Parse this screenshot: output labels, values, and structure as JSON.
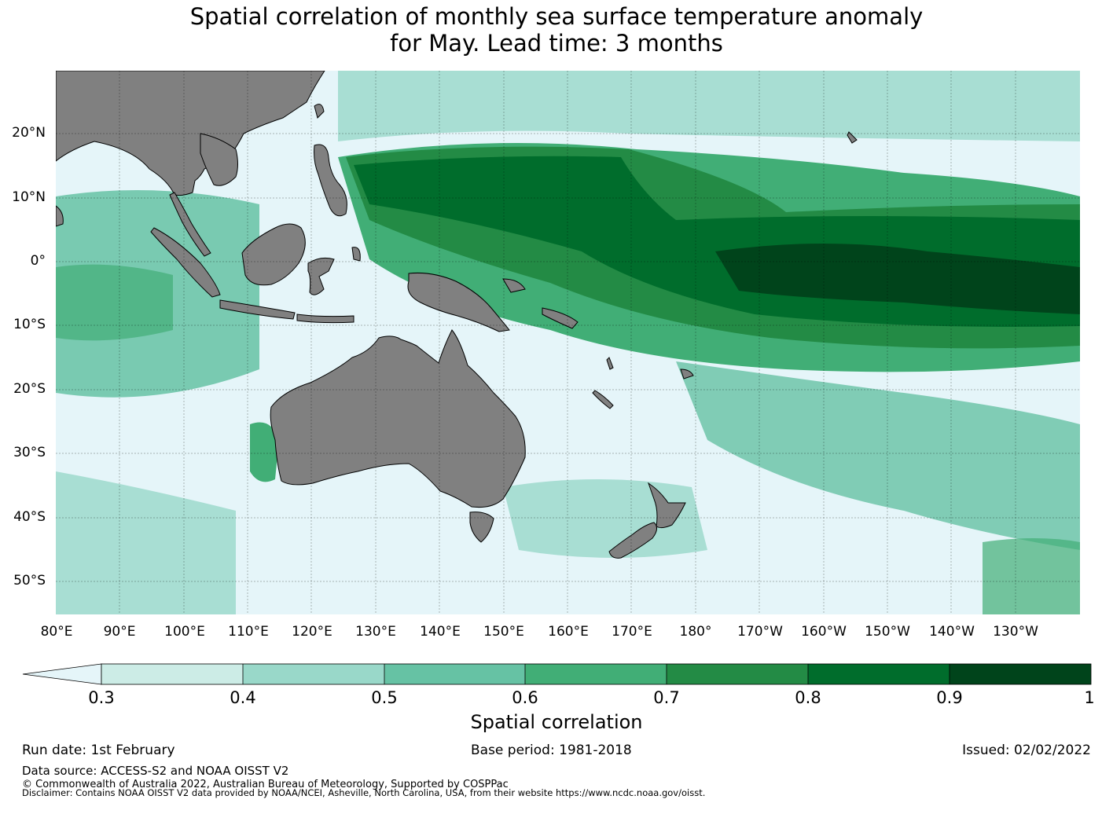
{
  "title": {
    "line1": "Spatial correlation of monthly sea surface temperature anomaly",
    "line2": "for May. Lead time: 3 months"
  },
  "map": {
    "lat_labels": [
      "20°N",
      "10°N",
      "0°",
      "10°S",
      "20°S",
      "30°S",
      "40°S",
      "50°S"
    ],
    "lon_labels": [
      "80°E",
      "90°E",
      "100°E",
      "110°E",
      "120°E",
      "130°E",
      "140°E",
      "150°E",
      "160°E",
      "170°E",
      "180°",
      "170°W",
      "160°W",
      "150°W",
      "140°W",
      "130°W"
    ],
    "colors": {
      "land": "#808080",
      "ocean_low": "#e5f5f9"
    }
  },
  "colorbar": {
    "ticks": [
      "0.3",
      "0.4",
      "0.5",
      "0.6",
      "0.7",
      "0.8",
      "0.9",
      "1"
    ],
    "colors": [
      "#e5f5f9",
      "#ccece6",
      "#99d8c9",
      "#66c2a4",
      "#41ae76",
      "#238b45",
      "#006d2c",
      "#00441b"
    ],
    "label": "Spatial correlation"
  },
  "footer": {
    "run_date": "Run date: 1st February",
    "base_period": "Base period: 1981-2018",
    "issued": "Issued: 02/02/2022",
    "data_source": "Data source: ACCESS-S2 and NOAA OISST V2",
    "copyright": "© Commonwealth of Australia 2022, Australian Bureau of Meteorology, Supported by COSPPac",
    "disclaimer": "Disclaimer: Contains NOAA OISST V2 data provided by NOAA/NCEI, Asheville, North Carolina, USA, from their website https://www.ncdc.noaa.gov/oisst."
  }
}
